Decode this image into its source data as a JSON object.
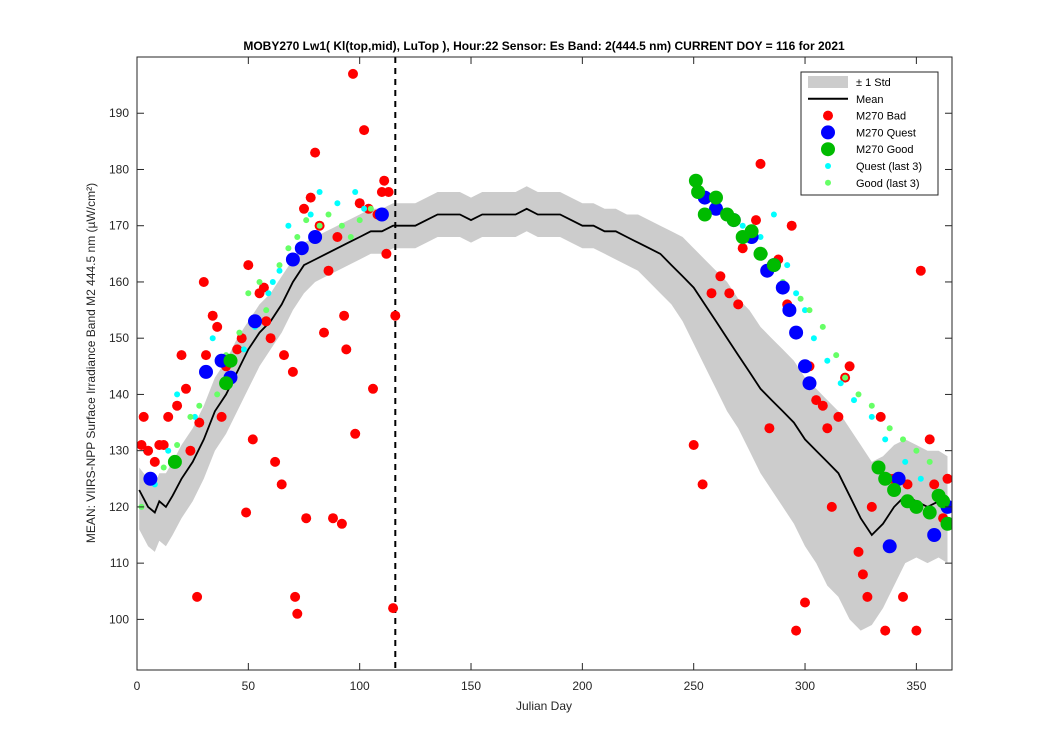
{
  "chart_data": {
    "type": "scatter",
    "title": "MOBY270   Lw1( Kl(top,mid), LuTop ),   Hour:22 Sensor: Es Band: 2(444.5 nm)   CURRENT DOY = 116 for 2021",
    "xlabel": "Julian Day",
    "ylabel": "MEAN: VIIRS-NPP Surface Irradiance Band M2 444.5 nm (µW/cm²)",
    "xlim": [
      0,
      366
    ],
    "ylim": [
      91,
      200
    ],
    "xticks": [
      0,
      50,
      100,
      150,
      200,
      250,
      300,
      350
    ],
    "yticks": [
      100,
      110,
      120,
      130,
      140,
      150,
      160,
      170,
      180,
      190
    ],
    "grid": false,
    "legend_position": "top-right",
    "current_doy": 116,
    "colors": {
      "std_band": "#cccccc",
      "mean": "#000000",
      "bad": "#ff0000",
      "quest": "#0000ff",
      "good": "#00bb00",
      "quest_last3": "#00ffff",
      "good_last3": "#66ff66"
    },
    "legend": [
      {
        "label": "± 1 Std",
        "key": "std_band"
      },
      {
        "label": "Mean",
        "key": "mean"
      },
      {
        "label": "M270 Bad",
        "key": "bad"
      },
      {
        "label": "M270 Quest",
        "key": "quest"
      },
      {
        "label": "M270 Good",
        "key": "good"
      },
      {
        "label": "Quest (last 3)",
        "key": "quest_last3"
      },
      {
        "label": "Good (last 3)",
        "key": "good_last3"
      }
    ],
    "mean_x": [
      1,
      5,
      8,
      10,
      13,
      16,
      20,
      25,
      30,
      35,
      40,
      45,
      50,
      55,
      60,
      65,
      70,
      75,
      80,
      85,
      90,
      95,
      100,
      105,
      110,
      115,
      120,
      125,
      130,
      135,
      140,
      145,
      150,
      155,
      160,
      165,
      170,
      175,
      180,
      185,
      190,
      195,
      200,
      205,
      210,
      215,
      220,
      225,
      230,
      235,
      240,
      245,
      250,
      255,
      260,
      265,
      270,
      275,
      280,
      285,
      290,
      295,
      300,
      305,
      310,
      315,
      320,
      325,
      330,
      335,
      340,
      345,
      350,
      355,
      360,
      364
    ],
    "mean_y": [
      123,
      120,
      119,
      121,
      120,
      122,
      125,
      128,
      132,
      137,
      140,
      144,
      148,
      151,
      153,
      156,
      160,
      163,
      164,
      165,
      166,
      167,
      168,
      169,
      169,
      170,
      170,
      170,
      171,
      172,
      172,
      172,
      171,
      172,
      172,
      172,
      172,
      173,
      172,
      172,
      172,
      171,
      170,
      170,
      169,
      169,
      168,
      167,
      166,
      165,
      163,
      161,
      159,
      156,
      153,
      150,
      147,
      144,
      141,
      139,
      137,
      135,
      132,
      130,
      128,
      126,
      122,
      118,
      115,
      117,
      120,
      122,
      121,
      120,
      121,
      120
    ],
    "std_upper": [
      127,
      125,
      124,
      126,
      126,
      128,
      131,
      134,
      138,
      143,
      146,
      150,
      153,
      156,
      158,
      161,
      164,
      167,
      168,
      169,
      170,
      171,
      172,
      173,
      173,
      174,
      174,
      174,
      175,
      176,
      176,
      176,
      175,
      176,
      176,
      176,
      176,
      177,
      176,
      176,
      176,
      175,
      174,
      174,
      173,
      173,
      172,
      172,
      171,
      170,
      169,
      168,
      166,
      164,
      162,
      160,
      157,
      155,
      152,
      150,
      148,
      146,
      143,
      141,
      139,
      137,
      134,
      131,
      128,
      129,
      131,
      132,
      131,
      130,
      130,
      129
    ],
    "std_lower": [
      116,
      113,
      112,
      114,
      113,
      115,
      118,
      121,
      125,
      130,
      133,
      137,
      141,
      145,
      148,
      151,
      155,
      158,
      160,
      161,
      162,
      163,
      164,
      165,
      165,
      166,
      166,
      166,
      167,
      168,
      168,
      168,
      167,
      168,
      168,
      168,
      168,
      169,
      168,
      168,
      168,
      167,
      166,
      166,
      165,
      164,
      163,
      162,
      160,
      158,
      156,
      153,
      149,
      145,
      141,
      137,
      134,
      130,
      126,
      123,
      120,
      117,
      113,
      110,
      106,
      104,
      100,
      98,
      99,
      102,
      106,
      110,
      111,
      110,
      111,
      110
    ],
    "bad": {
      "x": [
        2,
        3,
        5,
        8,
        10,
        12,
        14,
        18,
        20,
        22,
        24,
        27,
        28,
        30,
        31,
        34,
        36,
        38,
        40,
        42,
        45,
        47,
        49,
        50,
        52,
        55,
        57,
        58,
        60,
        62,
        65,
        66,
        70,
        71,
        72,
        75,
        76,
        78,
        80,
        82,
        84,
        86,
        88,
        90,
        92,
        93,
        94,
        97,
        98,
        100,
        102,
        104,
        106,
        108,
        110,
        111,
        112,
        113,
        115,
        116,
        250,
        254,
        258,
        262,
        266,
        270,
        272,
        278,
        280,
        284,
        288,
        292,
        294,
        296,
        300,
        302,
        305,
        308,
        310,
        312,
        315,
        318,
        320,
        324,
        326,
        328,
        330,
        334,
        336,
        338,
        340,
        344,
        346,
        350,
        352,
        356,
        358,
        360,
        362,
        364
      ],
      "y": [
        131,
        136,
        130,
        128,
        131,
        131,
        136,
        138,
        147,
        141,
        130,
        104,
        135,
        160,
        147,
        154,
        152,
        136,
        145,
        146,
        148,
        150,
        119,
        163,
        132,
        158,
        159,
        153,
        150,
        128,
        124,
        147,
        144,
        104,
        101,
        173,
        118,
        175,
        183,
        170,
        151,
        162,
        118,
        168,
        117,
        154,
        148,
        197,
        133,
        174,
        187,
        173,
        141,
        172,
        176,
        178,
        165,
        176,
        102,
        154,
        131,
        124,
        158,
        161,
        158,
        156,
        166,
        171,
        181,
        134,
        164,
        156,
        170,
        98,
        103,
        145,
        139,
        138,
        134,
        120,
        136,
        143,
        145,
        112,
        108,
        104,
        120,
        136,
        98,
        125,
        125,
        104,
        124,
        98,
        162,
        132,
        124,
        122,
        118,
        125
      ]
    },
    "quest": {
      "x": [
        6,
        31,
        38,
        42,
        53,
        70,
        74,
        80,
        110,
        255,
        260,
        268,
        276,
        283,
        286,
        290,
        293,
        296,
        300,
        302,
        338,
        342,
        358,
        364
      ],
      "y": [
        125,
        144,
        146,
        143,
        153,
        164,
        166,
        168,
        172,
        175,
        173,
        171,
        168,
        162,
        163,
        159,
        155,
        151,
        145,
        142,
        113,
        125,
        115,
        120
      ],
      "size": "large"
    },
    "good": {
      "x": [
        17,
        40,
        42,
        251,
        252,
        255,
        260,
        265,
        268,
        272,
        276,
        280,
        286,
        333,
        336,
        340,
        346,
        350,
        356,
        360,
        362,
        364
      ],
      "y": [
        128,
        142,
        146,
        178,
        176,
        172,
        175,
        172,
        171,
        168,
        169,
        165,
        163,
        127,
        125,
        123,
        121,
        120,
        119,
        122,
        121,
        117
      ],
      "size": "large"
    },
    "quest_last3": {
      "x": [
        8,
        14,
        18,
        26,
        34,
        48,
        53,
        59,
        61,
        64,
        68,
        78,
        82,
        90,
        98,
        102,
        272,
        280,
        286,
        292,
        296,
        300,
        304,
        310,
        316,
        322,
        330,
        336,
        345,
        352
      ],
      "y": [
        124,
        130,
        140,
        136,
        150,
        148,
        152,
        158,
        160,
        162,
        170,
        172,
        176,
        174,
        176,
        173,
        170,
        168,
        172,
        163,
        158,
        155,
        150,
        146,
        142,
        139,
        136,
        132,
        128,
        125
      ],
      "size": "small"
    },
    "good_last3": {
      "x": [
        2,
        12,
        18,
        24,
        28,
        36,
        40,
        46,
        50,
        55,
        58,
        64,
        68,
        72,
        76,
        82,
        86,
        92,
        96,
        100,
        105,
        266,
        274,
        282,
        290,
        298,
        302,
        308,
        314,
        318,
        324,
        330,
        338,
        344,
        350,
        356
      ],
      "y": [
        120,
        127,
        131,
        136,
        138,
        140,
        147,
        151,
        158,
        160,
        155,
        163,
        166,
        168,
        171,
        170,
        172,
        170,
        168,
        171,
        173,
        171,
        168,
        165,
        160,
        157,
        155,
        152,
        147,
        143,
        140,
        138,
        134,
        132,
        130,
        128
      ],
      "size": "small"
    }
  }
}
